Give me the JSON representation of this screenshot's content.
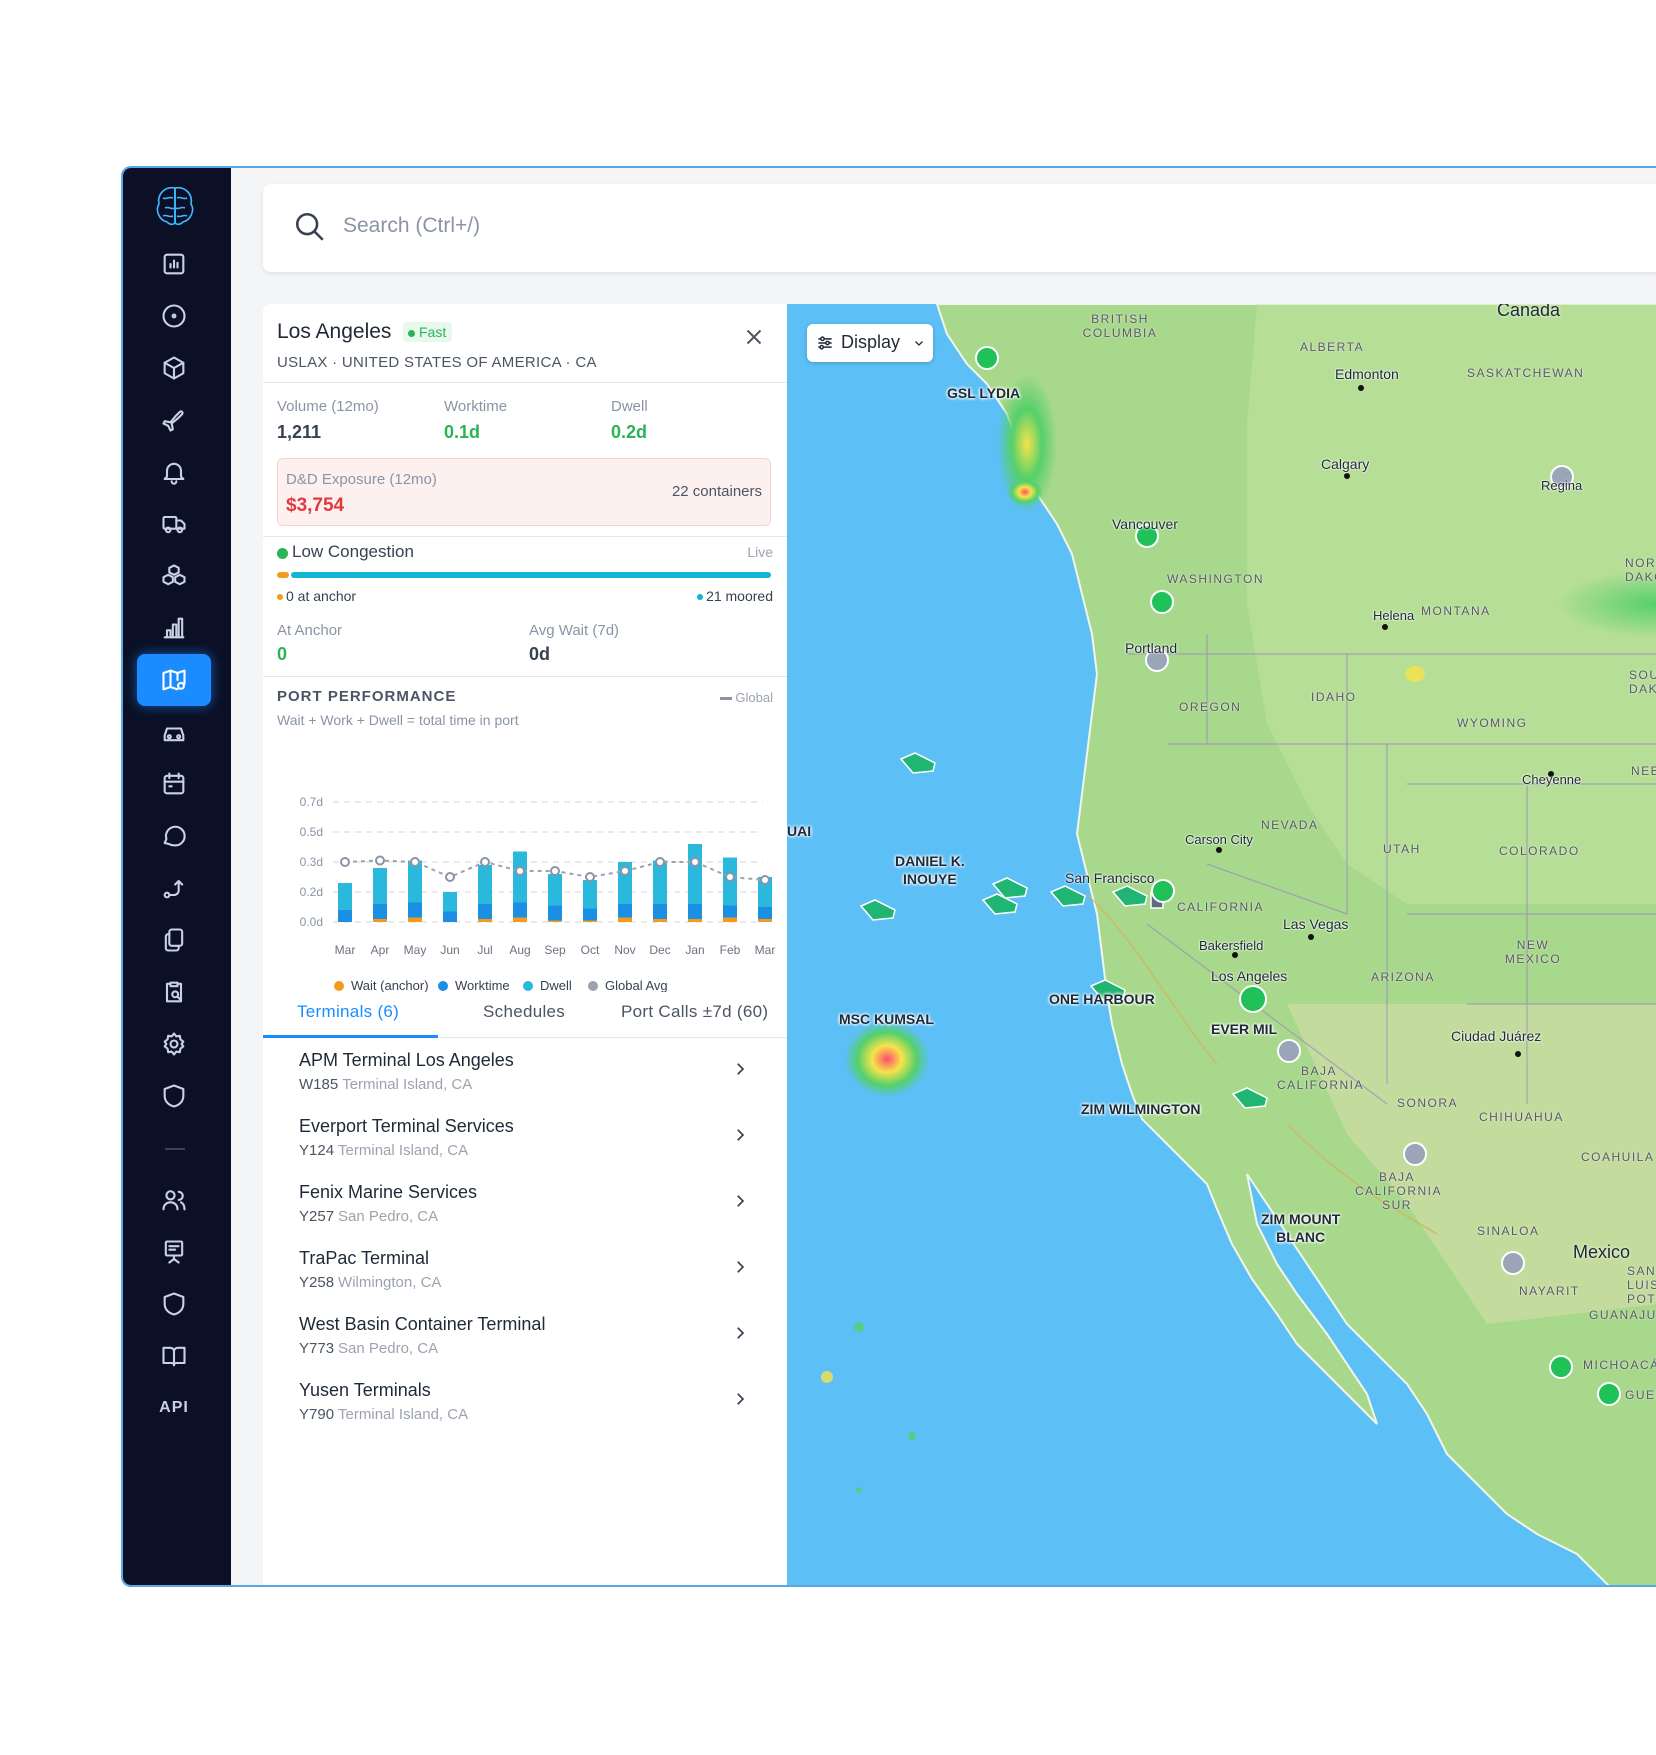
{
  "search": {
    "placeholder": "Search (Ctrl+/)"
  },
  "sidebar": {
    "logo": "brain-logo",
    "items": [
      {
        "icon": "analytics-icon"
      },
      {
        "icon": "compass-icon"
      },
      {
        "icon": "box-icon"
      },
      {
        "icon": "plane-icon"
      },
      {
        "icon": "bell-icon"
      },
      {
        "icon": "truck-icon"
      },
      {
        "icon": "cubes-icon"
      },
      {
        "icon": "bar-chart-icon"
      },
      {
        "icon": "map-icon",
        "active": true
      },
      {
        "icon": "car-icon"
      },
      {
        "icon": "calendar-icon"
      },
      {
        "icon": "chat-icon"
      },
      {
        "icon": "route-icon"
      },
      {
        "icon": "documents-icon"
      },
      {
        "icon": "clipboard-search-icon"
      },
      {
        "icon": "gear-icon"
      },
      {
        "icon": "shield-icon"
      },
      {
        "icon": "users-icon"
      },
      {
        "icon": "presentation-icon"
      },
      {
        "icon": "shield-icon"
      },
      {
        "icon": "book-icon"
      }
    ],
    "api_label": "API"
  },
  "port": {
    "name": "Los Angeles",
    "badge": "Fast",
    "subtitle": "USLAX · UNITED STATES OF AMERICA · CA",
    "stats": {
      "volume_label": "Volume (12mo)",
      "volume_value": "1,211",
      "worktime_label": "Worktime",
      "worktime_value": "0.1d",
      "dwell_label": "Dwell",
      "dwell_value": "0.2d"
    },
    "dd": {
      "label": "D&D Exposure (12mo)",
      "value": "$3,754",
      "containers": "22 containers"
    },
    "congestion": {
      "title": "Low Congestion",
      "live": "Live",
      "anchor_text": "0 at anchor",
      "moored_text": "21 moored",
      "at_anchor_label": "At Anchor",
      "at_anchor_value": "0",
      "avg_wait_label": "Avg Wait (7d)",
      "avg_wait_value": "0d"
    },
    "performance": {
      "title": "PORT PERFORMANCE",
      "subtitle": "Wait + Work + Dwell = total time in port",
      "global_key": "Global"
    }
  },
  "chart_data": {
    "type": "bar",
    "categories": [
      "Mar",
      "Apr",
      "May",
      "Jun",
      "Jul",
      "Aug",
      "Sep",
      "Oct",
      "Nov",
      "Dec",
      "Jan",
      "Feb",
      "Mar"
    ],
    "y_ticks": [
      "0.0d",
      "0.2d",
      "0.3d",
      "0.5d",
      "0.7d"
    ],
    "ylim": [
      0,
      0.7
    ],
    "stacked": true,
    "series": [
      {
        "name": "Wait (anchor)",
        "color": "#f39b1c",
        "values": [
          0.0,
          0.02,
          0.03,
          0.0,
          0.02,
          0.03,
          0.01,
          0.01,
          0.03,
          0.02,
          0.02,
          0.03,
          0.02
        ]
      },
      {
        "name": "Worktime",
        "color": "#1a8fe3",
        "values": [
          0.08,
          0.1,
          0.1,
          0.07,
          0.1,
          0.1,
          0.1,
          0.08,
          0.09,
          0.1,
          0.1,
          0.08,
          0.08
        ]
      },
      {
        "name": "Dwell",
        "color": "#2ab8dc",
        "values": [
          0.15,
          0.16,
          0.18,
          0.13,
          0.17,
          0.24,
          0.15,
          0.15,
          0.18,
          0.19,
          0.3,
          0.22,
          0.15
        ]
      },
      {
        "name": "Global Avg",
        "color": "#9ca3af",
        "type": "line",
        "values": [
          0.3,
          0.31,
          0.3,
          0.25,
          0.3,
          0.27,
          0.27,
          0.25,
          0.27,
          0.3,
          0.3,
          0.25,
          0.24
        ]
      }
    ],
    "legend": [
      "Wait (anchor)",
      "Worktime",
      "Dwell",
      "Global Avg"
    ]
  },
  "tabs": [
    {
      "label": "Terminals (6)",
      "active": true
    },
    {
      "label": "Schedules"
    },
    {
      "label": "Port Calls ±7d (60)"
    }
  ],
  "terminals": [
    {
      "name": "APM Terminal Los Angeles",
      "code": "W185",
      "location": "Terminal Island, CA"
    },
    {
      "name": "Everport Terminal Services",
      "code": "Y124",
      "location": "Terminal Island, CA"
    },
    {
      "name": "Fenix Marine Services",
      "code": "Y257",
      "location": "San Pedro, CA"
    },
    {
      "name": "TraPac Terminal",
      "code": "Y258",
      "location": "Wilmington, CA"
    },
    {
      "name": "West Basin Container Terminal",
      "code": "Y773",
      "location": "San Pedro, CA"
    },
    {
      "name": "Yusen Terminals",
      "code": "Y790",
      "location": "Terminal Island, CA"
    }
  ],
  "map": {
    "display_label": "Display",
    "countries": {
      "canada": "Canada",
      "mexico": "Mexico"
    },
    "regions": {
      "bc": "BRITISH COLUMBIA",
      "alberta": "ALBERTA",
      "sask": "SASKATCHEWAN",
      "washington": "WASHINGTON",
      "montana": "MONTANA",
      "oregon": "OREGON",
      "idaho": "IDAHO",
      "wyoming": "WYOMING",
      "nevada": "NEVADA",
      "utah": "UTAH",
      "colorado": "COLORADO",
      "california": "CALIFORNIA",
      "arizona": "ARIZONA",
      "newmexico": "NEW MEXICO",
      "bajacal": "BAJA CALIFORNIA",
      "sonora": "SONORA",
      "chihuahua": "CHIHUAHUA",
      "coahuila": "COAHUILA",
      "bajasur": "BAJA CALIFORNIA SUR",
      "sinaloa": "SINALOA",
      "nayarit": "NAYARIT",
      "sanluis": "SAN LUIS POTO",
      "guanajuato": "GUANAJUA",
      "michoacan": "MICHOACÁN",
      "guerrero": "GUER",
      "northdak": "NORT DAKO",
      "southdak": "SOU DAK",
      "nebr": "NEBR"
    },
    "cities": {
      "edmonton": "Edmonton",
      "calgary": "Calgary",
      "regina": "Regina",
      "vancouver": "Vancouver",
      "helena": "Helena",
      "portland": "Portland",
      "cheyenne": "Cheyenne",
      "carson": "Carson City",
      "sanfran": "San Francisco",
      "lasvegas": "Las Vegas",
      "bakersfield": "Bakersfield",
      "losangeles": "Los Angeles",
      "ciudadjuarez": "Ciudad Juárez"
    },
    "ships": {
      "gsl_lydia": "GSL LYDIA",
      "daniel": "DANIEL K.\nINOUYE",
      "msc_kumsal": "MSC KUMSAL",
      "one_harbour": "ONE HARBOUR",
      "ever_mil": "EVER MIL",
      "zim_wilmington": "ZIM WILMINGTON",
      "zim_mount_blanc": "ZIM MOUNT\nBLANC",
      "uai": "UAI"
    }
  }
}
